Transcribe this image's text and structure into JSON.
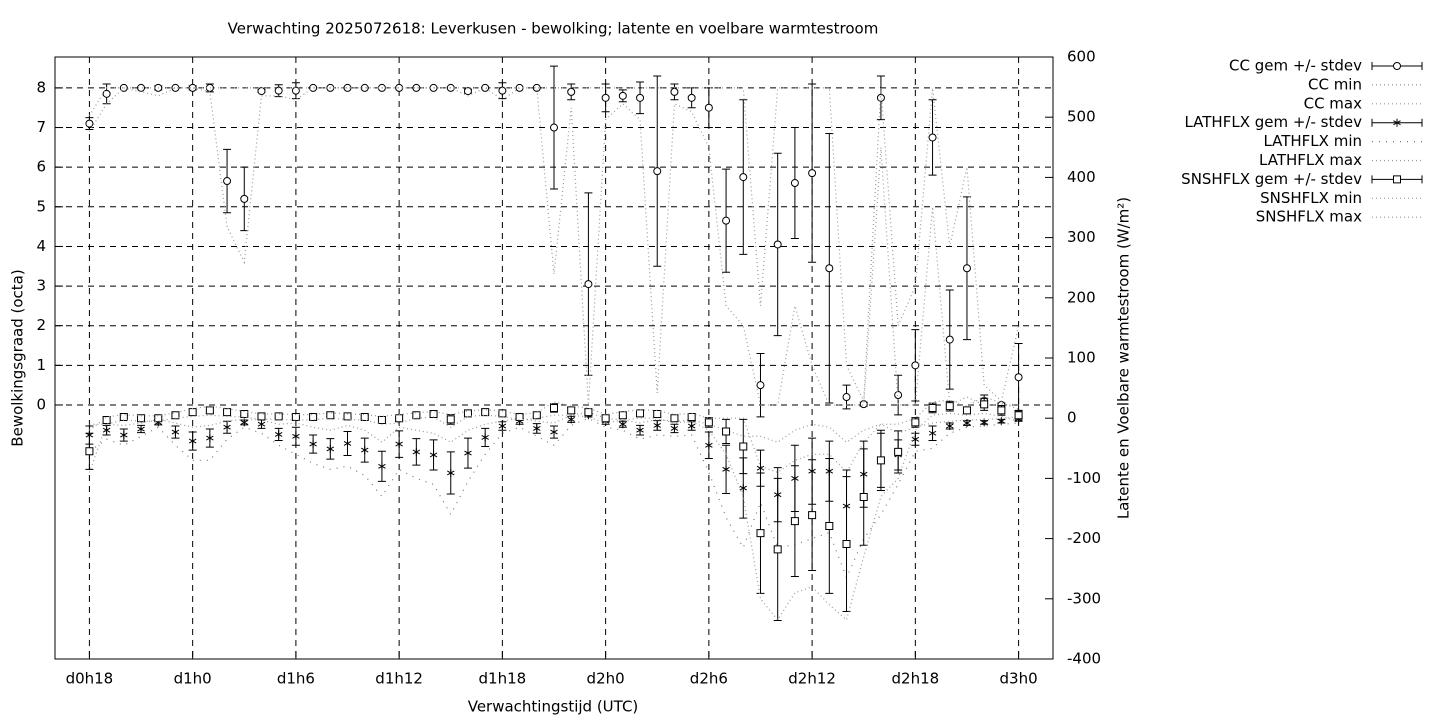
{
  "chart_data": {
    "type": "errorbar",
    "title": "Verwachting 2025072618: Leverkusen - bewolking; latente en voelbare warmtestroom",
    "x_label": "Verwachtingstijd (UTC)",
    "y_label": "Bewolkingsgraad (octa)",
    "y2_label": "Latente en Voelbare warmtestroom (W/m²)",
    "xlim": [
      16,
      74
    ],
    "xticks": [
      {
        "value": 18,
        "label": "d0h18"
      },
      {
        "value": 24,
        "label": "d1h0"
      },
      {
        "value": 30,
        "label": "d1h6"
      },
      {
        "value": 36,
        "label": "d1h12"
      },
      {
        "value": 42,
        "label": "d1h18"
      },
      {
        "value": 48,
        "label": "d2h0"
      },
      {
        "value": 54,
        "label": "d2h6"
      },
      {
        "value": 60,
        "label": "d2h12"
      },
      {
        "value": 66,
        "label": "d2h18"
      },
      {
        "value": 72,
        "label": "d3h0"
      }
    ],
    "ylim": [
      -6.41,
      8.78
    ],
    "yticks": [
      0,
      1,
      2,
      3,
      4,
      5,
      6,
      7,
      8
    ],
    "y2lim": [
      -400,
      600
    ],
    "y2ticks": [
      -400,
      -300,
      -200,
      -100,
      0,
      100,
      200,
      300,
      400,
      500,
      600
    ],
    "grid": true,
    "legend": "outside-right",
    "x": [
      18,
      19,
      20,
      21,
      22,
      23,
      24,
      25,
      26,
      27,
      28,
      29,
      30,
      31,
      32,
      33,
      34,
      35,
      36,
      37,
      38,
      39,
      40,
      41,
      42,
      43,
      44,
      45,
      46,
      47,
      48,
      49,
      50,
      51,
      52,
      53,
      54,
      55,
      56,
      57,
      58,
      59,
      60,
      61,
      62,
      63,
      64,
      65,
      66,
      67,
      68,
      69,
      70,
      71,
      72
    ],
    "series": [
      {
        "name": "CC gem +/- stdev",
        "color": "#000000",
        "marker": "circle",
        "values": [
          7.1,
          7.85,
          8,
          8,
          8,
          8,
          8,
          8,
          5.65,
          5.2,
          7.92,
          7.93,
          7.93,
          8,
          8,
          8,
          8,
          8,
          8,
          8,
          8,
          8,
          7.92,
          8,
          7.93,
          8,
          8,
          7.0,
          7.9,
          3.05,
          7.75,
          7.8,
          7.75,
          5.9,
          7.9,
          7.75,
          7.5,
          4.65,
          5.75,
          0.5,
          4.05,
          5.6,
          5.85,
          3.45,
          0.2,
          0.02,
          7.75,
          0.25,
          1.0,
          6.75,
          1.65,
          3.45,
          0.1,
          0.0,
          0.7
        ],
        "errors": [
          0.15,
          0.25,
          0,
          0,
          0.05,
          0,
          0.05,
          0.1,
          0.8,
          0.8,
          0.03,
          0.15,
          0.2,
          0,
          0,
          0,
          0,
          0,
          0,
          0,
          0,
          0,
          0.05,
          0,
          0.2,
          0,
          0,
          1.55,
          0.2,
          2.3,
          0.35,
          0.15,
          0.4,
          2.4,
          0.2,
          0.25,
          0.5,
          1.3,
          1.95,
          0.8,
          2.3,
          1.4,
          2.25,
          3.4,
          0.3,
          0.05,
          0.55,
          0.5,
          0.9,
          0.95,
          1.25,
          1.8,
          0.15,
          0.05,
          0.85
        ]
      },
      {
        "name": "CC min",
        "color": "#999999",
        "dash": "1,3",
        "values": [
          6.9,
          7.6,
          8,
          7.9,
          7.8,
          8,
          8,
          7.9,
          4.5,
          3.6,
          7.8,
          7.8,
          7.7,
          8,
          8,
          8,
          8,
          8,
          8,
          8,
          8,
          8,
          7.8,
          8,
          7.7,
          8,
          8,
          3.3,
          7.5,
          0,
          7.2,
          7.6,
          7.2,
          0.3,
          7.6,
          7.4,
          6.5,
          2.5,
          2.0,
          0,
          0,
          2.5,
          1.0,
          0,
          0,
          0,
          6.5,
          0,
          0,
          5.0,
          0,
          0.2,
          0,
          0,
          0
        ]
      },
      {
        "name": "CC max",
        "color": "#999999",
        "dash": "1,3",
        "values": [
          7.3,
          8,
          8,
          8,
          8,
          8,
          8,
          8,
          8,
          8,
          8,
          8,
          8,
          8,
          8,
          8,
          8,
          8,
          8,
          8,
          8,
          8,
          8,
          8,
          8,
          8,
          8,
          8,
          8,
          8,
          8,
          8,
          8,
          8,
          8,
          8,
          8,
          8,
          8,
          2.5,
          8,
          8,
          8,
          8,
          1.0,
          0.1,
          8,
          2.0,
          3.0,
          8,
          4.0,
          6.0,
          0.5,
          0.1,
          2.0
        ]
      },
      {
        "name": "LATHFLX gem +/- stdev",
        "color": "#000000",
        "marker": "star",
        "axis": "y2",
        "values": [
          -28,
          -20,
          -28,
          -18,
          -7,
          -23,
          -38,
          -33,
          -15,
          -7,
          -10,
          -27,
          -30,
          -43,
          -51,
          -42,
          -53,
          -80,
          -43,
          -56,
          -61,
          -91,
          -58,
          -32,
          -13,
          -5,
          -17,
          -23,
          -2,
          5,
          -5,
          -10,
          -20,
          -12,
          -17,
          -13,
          -45,
          -85,
          -116,
          -83,
          -127,
          -100,
          -88,
          -88,
          -146,
          -93,
          -70,
          -61,
          -35,
          -25,
          -13,
          -8,
          -7,
          -5,
          -2
        ],
        "errors": [
          15,
          8,
          10,
          6,
          4,
          10,
          15,
          15,
          10,
          4,
          7,
          10,
          15,
          15,
          17,
          20,
          20,
          25,
          22,
          22,
          25,
          35,
          25,
          15,
          7,
          5,
          8,
          10,
          5,
          3,
          5,
          5,
          8,
          8,
          7,
          7,
          22,
          40,
          50,
          30,
          45,
          55,
          55,
          50,
          60,
          55,
          45,
          25,
          10,
          12,
          5,
          4,
          3,
          3,
          3
        ]
      },
      {
        "name": "LATHFLX min",
        "color": "#777777",
        "dash": "1,6",
        "axis": "y2",
        "values": [
          -55,
          -35,
          -45,
          -30,
          -15,
          -45,
          -70,
          -70,
          -35,
          -15,
          -25,
          -45,
          -60,
          -75,
          -85,
          -80,
          -95,
          -130,
          -85,
          -100,
          -110,
          -160,
          -105,
          -60,
          -25,
          -15,
          -30,
          -45,
          -12,
          0,
          -15,
          -20,
          -35,
          -28,
          -30,
          -28,
          -90,
          -165,
          -215,
          -140,
          -215,
          -210,
          -200,
          -190,
          -265,
          -200,
          -160,
          -110,
          -55,
          -50,
          -25,
          -15,
          -13,
          -10,
          -8
        ]
      },
      {
        "name": "LATHFLX max",
        "color": "#999999",
        "dash": "1,3",
        "axis": "y2",
        "values": [
          -10,
          -10,
          -12,
          -8,
          -2,
          -8,
          -15,
          -12,
          -5,
          -2,
          -3,
          -10,
          -8,
          -15,
          -20,
          -12,
          -20,
          -40,
          -15,
          -20,
          -25,
          -40,
          -20,
          -10,
          -5,
          0,
          -5,
          -8,
          5,
          10,
          0,
          -3,
          -8,
          -2,
          -5,
          -3,
          -10,
          -20,
          -30,
          -30,
          -40,
          -20,
          -10,
          -15,
          -40,
          -20,
          -10,
          -25,
          -15,
          -8,
          -5,
          -3,
          -2,
          -1,
          3
        ]
      },
      {
        "name": "SNSHFLX gem +/- stdev",
        "color": "#000000",
        "marker": "square",
        "axis": "y2",
        "values": [
          -55,
          -3,
          2,
          0,
          0,
          5,
          10,
          13,
          10,
          7,
          3,
          3,
          2,
          2,
          5,
          3,
          2,
          -3,
          0,
          5,
          7,
          -2,
          8,
          10,
          8,
          2,
          5,
          17,
          13,
          10,
          0,
          5,
          8,
          7,
          0,
          2,
          -7,
          -22,
          -47,
          -191,
          -218,
          -171,
          -161,
          -179,
          -209,
          -131,
          -70,
          -56,
          -7,
          17,
          20,
          13,
          23,
          13,
          5
        ],
        "errors": [
          30,
          5,
          3,
          3,
          3,
          3,
          5,
          5,
          5,
          3,
          3,
          3,
          3,
          3,
          3,
          3,
          3,
          5,
          5,
          3,
          3,
          8,
          3,
          3,
          3,
          3,
          3,
          7,
          5,
          5,
          5,
          5,
          5,
          5,
          5,
          5,
          8,
          20,
          45,
          100,
          118,
          92,
          92,
          112,
          112,
          80,
          50,
          35,
          8,
          8,
          8,
          5,
          10,
          8,
          8
        ]
      },
      {
        "name": "SNSHFLX min",
        "color": "#999999",
        "dash": "1,3",
        "axis": "y2",
        "values": [
          -90,
          -10,
          -3,
          -5,
          -5,
          0,
          3,
          5,
          3,
          2,
          -2,
          -2,
          -3,
          -3,
          0,
          -2,
          -3,
          -10,
          -8,
          0,
          2,
          -15,
          3,
          5,
          3,
          -3,
          0,
          5,
          5,
          2,
          -8,
          -3,
          0,
          0,
          -8,
          -5,
          -20,
          -60,
          -130,
          -300,
          -335,
          -290,
          -280,
          -310,
          -335,
          -230,
          -130,
          -100,
          -20,
          5,
          8,
          5,
          8,
          3,
          -5
        ]
      },
      {
        "name": "SNSHFLX max",
        "color": "#999999",
        "dash": "1,3",
        "axis": "y2",
        "values": [
          -20,
          2,
          6,
          4,
          4,
          9,
          16,
          20,
          16,
          11,
          7,
          7,
          6,
          6,
          9,
          7,
          6,
          3,
          6,
          9,
          11,
          6,
          12,
          14,
          12,
          6,
          9,
          27,
          20,
          17,
          6,
          11,
          14,
          13,
          6,
          8,
          0,
          0,
          0,
          -80,
          -90,
          -70,
          -60,
          -60,
          -90,
          -40,
          -10,
          -10,
          0,
          27,
          30,
          20,
          36,
          25,
          15
        ]
      }
    ]
  }
}
